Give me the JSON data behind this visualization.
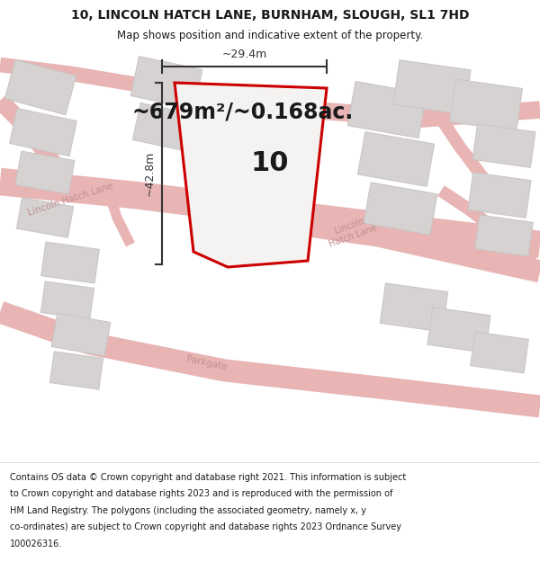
{
  "title": "10, LINCOLN HATCH LANE, BURNHAM, SLOUGH, SL1 7HD",
  "subtitle": "Map shows position and indicative extent of the property.",
  "area_text": "~679m²/~0.168ac.",
  "number_label": "10",
  "dim_width": "~29.4m",
  "dim_height": "~42.8m",
  "footer_lines": [
    "Contains OS data © Crown copyright and database right 2021. This information is subject",
    "to Crown copyright and database rights 2023 and is reproduced with the permission of",
    "HM Land Registry. The polygons (including the associated geometry, namely x, y",
    "co-ordinates) are subject to Crown copyright and database rights 2023 Ordnance Survey",
    "100026316."
  ],
  "map_bg": "#f2efef",
  "road_color": "#e8b4b4",
  "building_fill": "#d6d2d2",
  "building_edge": "#c8c4c4",
  "property_color": "#cc0000",
  "white": "#ffffff",
  "text_dark": "#1a1a1a",
  "dim_color": "#333333",
  "road_label_color": "#c09090",
  "title_fontsize": 10,
  "subtitle_fontsize": 8.5,
  "area_fontsize": 17,
  "num_fontsize": 22,
  "dim_fontsize": 9,
  "road_label_fontsize": 7.5,
  "footer_fontsize": 7.0,
  "fig_width": 6.0,
  "fig_height": 6.25,
  "dpi": 100
}
